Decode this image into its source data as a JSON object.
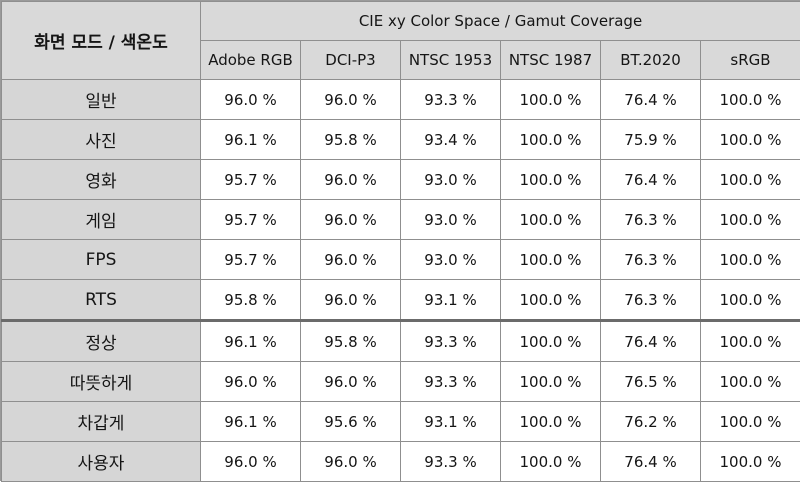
{
  "header": {
    "mode_label": "화면 모드 / 색온도",
    "group_label": "CIE xy Color Space / Gamut Coverage",
    "columns": [
      "Adobe RGB",
      "DCI-P3",
      "NTSC 1953",
      "NTSC 1987",
      "BT.2020",
      "sRGB"
    ]
  },
  "rows": [
    {
      "label": "일반",
      "values": [
        "96.0 %",
        "96.0 %",
        "93.3 %",
        "100.0 %",
        "76.4 %",
        "100.0 %"
      ]
    },
    {
      "label": "사진",
      "values": [
        "96.1 %",
        "95.8 %",
        "93.4 %",
        "100.0 %",
        "75.9 %",
        "100.0 %"
      ]
    },
    {
      "label": "영화",
      "values": [
        "95.7 %",
        "96.0 %",
        "93.0 %",
        "100.0 %",
        "76.4 %",
        "100.0 %"
      ]
    },
    {
      "label": "게임",
      "values": [
        "95.7 %",
        "96.0 %",
        "93.0 %",
        "100.0 %",
        "76.3 %",
        "100.0 %"
      ]
    },
    {
      "label": "FPS",
      "values": [
        "95.7 %",
        "96.0 %",
        "93.0 %",
        "100.0 %",
        "76.3 %",
        "100.0 %"
      ]
    },
    {
      "label": "RTS",
      "values": [
        "95.8 %",
        "96.0 %",
        "93.1 %",
        "100.0 %",
        "76.3 %",
        "100.0 %"
      ]
    },
    {
      "label": "정상",
      "values": [
        "96.1 %",
        "95.8 %",
        "93.3 %",
        "100.0 %",
        "76.4 %",
        "100.0 %"
      ]
    },
    {
      "label": "따뜻하게",
      "values": [
        "96.0 %",
        "96.0 %",
        "93.3 %",
        "100.0 %",
        "76.5 %",
        "100.0 %"
      ]
    },
    {
      "label": "차갑게",
      "values": [
        "96.1 %",
        "95.6 %",
        "93.1 %",
        "100.0 %",
        "76.2 %",
        "100.0 %"
      ]
    },
    {
      "label": "사용자",
      "values": [
        "96.0 %",
        "96.0 %",
        "93.3 %",
        "100.0 %",
        "76.4 %",
        "100.0 %"
      ]
    }
  ]
}
